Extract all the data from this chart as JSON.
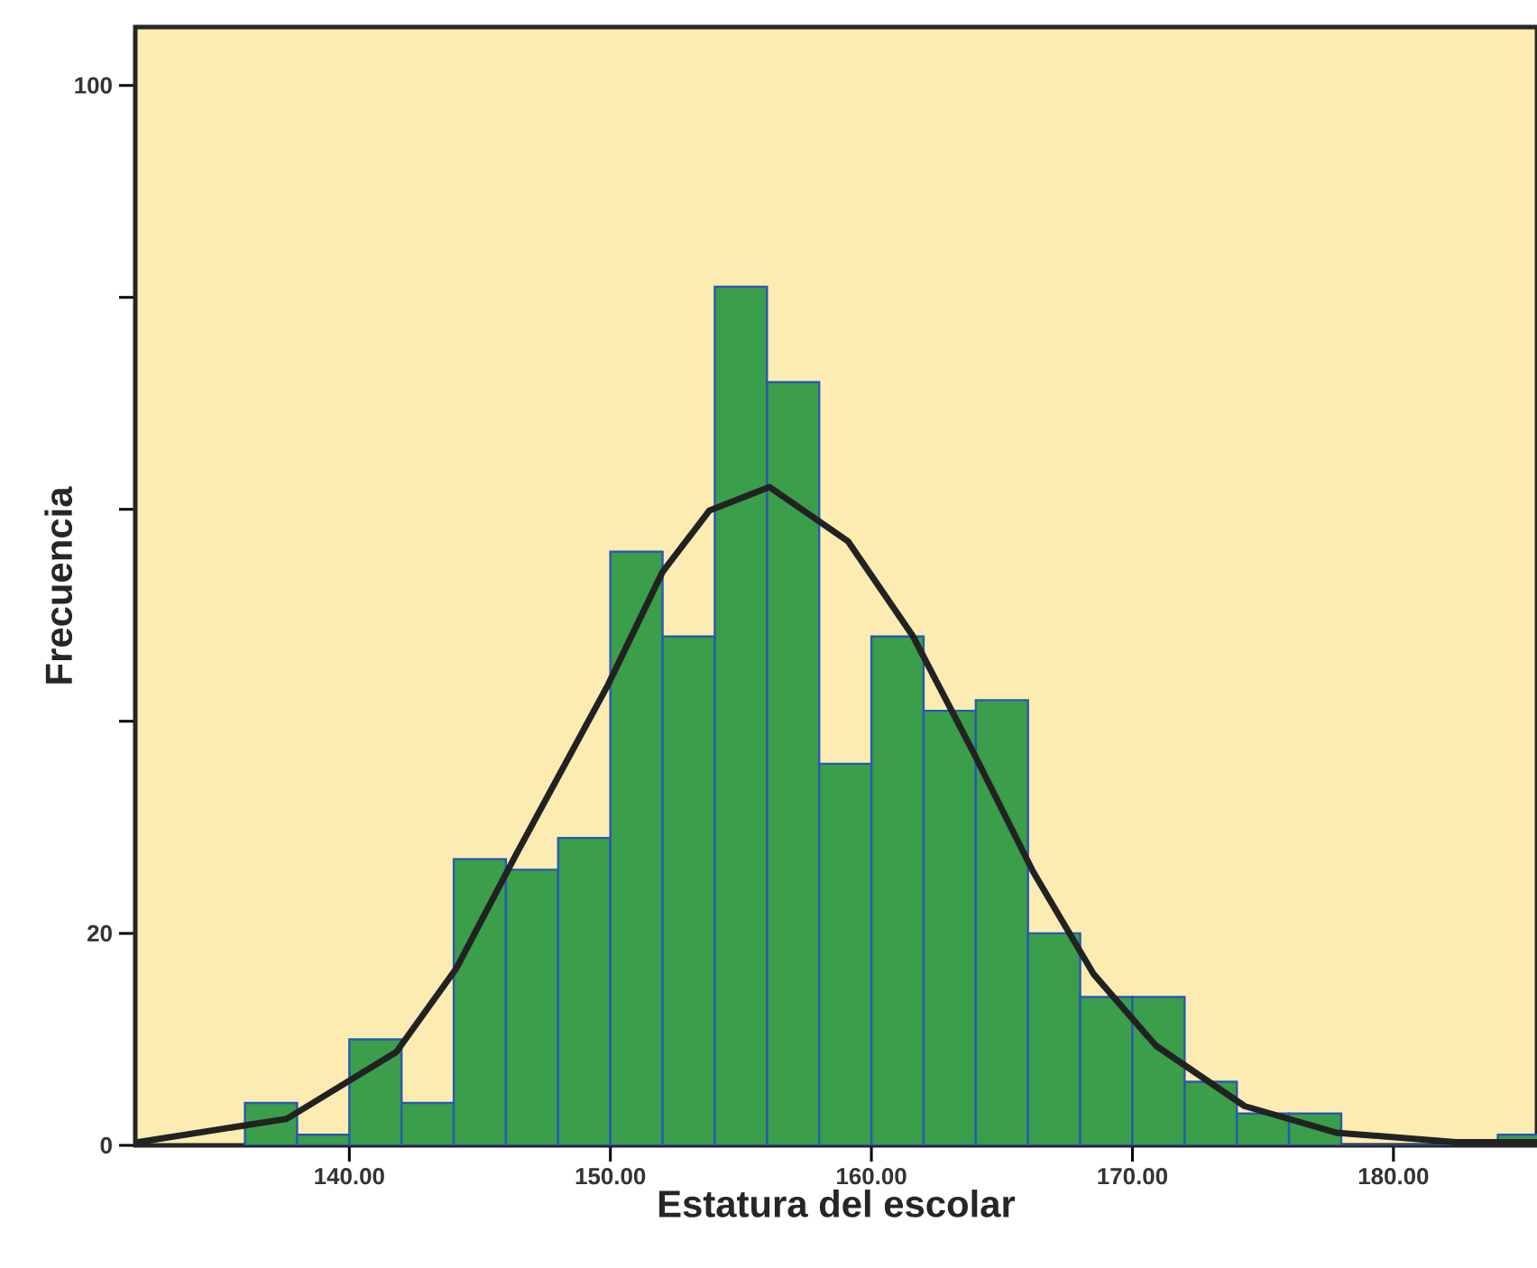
{
  "chart_data": {
    "type": "histogram",
    "xlabel": "Estatura del escolar",
    "ylabel": "Frecuencia",
    "bins": [
      136,
      138,
      140,
      142,
      144,
      146,
      148,
      150,
      152,
      154,
      156,
      158,
      160,
      162,
      164,
      166,
      168,
      170,
      172,
      174,
      176,
      178,
      180,
      182,
      184,
      186
    ],
    "values": [
      4,
      1,
      10,
      4,
      27,
      26,
      29,
      56,
      48,
      81,
      72,
      36,
      48,
      41,
      42,
      20,
      14,
      14,
      6,
      3,
      3,
      0,
      0,
      0,
      1
    ],
    "color": "#3a9e4a",
    "series": [
      {
        "type": "line",
        "color": "#222222",
        "x": [
          131.9,
          137.6,
          141.8,
          144.1,
          146.4,
          149.9,
          152.0,
          153.8,
          156.1,
          159.1,
          161.6,
          163.9,
          166.2,
          168.5,
          170.9,
          174.3,
          177.8,
          182.4,
          185.5
        ],
        "values": [
          0.3,
          2.5,
          8.8,
          16.7,
          27.5,
          43.4,
          54.1,
          59.9,
          62.1,
          57,
          48,
          37.1,
          25.8,
          16.2,
          9.4,
          3.7,
          1.2,
          0.3,
          0.3
        ]
      }
    ],
    "xlim": [
      131.8,
      185.5
    ],
    "ylim": [
      0,
      105.5
    ],
    "xticks": [
      {
        "value": 140,
        "label": "140.00"
      },
      {
        "value": 150,
        "label": "150.00"
      },
      {
        "value": 160,
        "label": "160.00"
      },
      {
        "value": 170,
        "label": "170.00"
      },
      {
        "value": 180,
        "label": "180.00"
      }
    ],
    "yticks": [
      0,
      20,
      {
        "value": 40,
        "label": null
      },
      {
        "value": 60,
        "label": null
      },
      {
        "value": 80,
        "label": null
      },
      100
    ],
    "marker": "none",
    "line_style": "solid"
  }
}
